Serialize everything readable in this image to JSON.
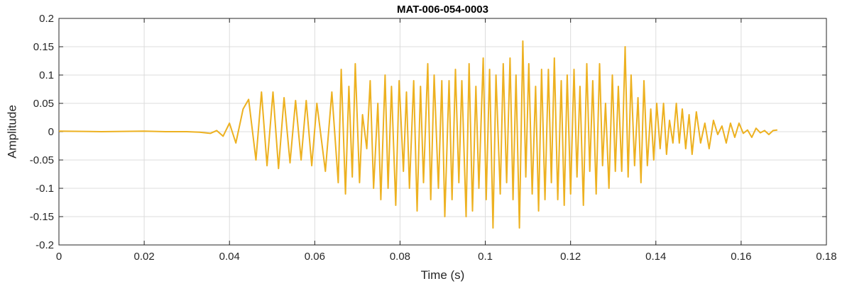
{
  "chart_data": {
    "type": "line",
    "title": "MAT-006-054-0003",
    "xlabel": "Time (s)",
    "ylabel": "Amplitude",
    "xlim": [
      0,
      0.18
    ],
    "ylim": [
      -0.2,
      0.2
    ],
    "grid": true,
    "legend": "none",
    "colors": {
      "line": "#EDB120",
      "axes": "#262626",
      "grid": "#dcdcdc"
    },
    "x_ticks": [
      {
        "value": 0,
        "label": "0"
      },
      {
        "value": 0.02,
        "label": "0.02"
      },
      {
        "value": 0.04,
        "label": "0.04"
      },
      {
        "value": 0.06,
        "label": "0.06"
      },
      {
        "value": 0.08,
        "label": "0.08"
      },
      {
        "value": 0.1,
        "label": "0.1"
      },
      {
        "value": 0.12,
        "label": "0.12"
      },
      {
        "value": 0.14,
        "label": "0.14"
      },
      {
        "value": 0.16,
        "label": "0.16"
      },
      {
        "value": 0.18,
        "label": "0.18"
      }
    ],
    "y_ticks": [
      {
        "value": 0.2,
        "label": "0.2"
      },
      {
        "value": 0.15,
        "label": "0.15"
      },
      {
        "value": 0.1,
        "label": "0.1"
      },
      {
        "value": 0.05,
        "label": "0.05"
      },
      {
        "value": 0,
        "label": "0"
      },
      {
        "value": -0.05,
        "label": "-0.05"
      },
      {
        "value": -0.1,
        "label": "-0.1"
      },
      {
        "value": -0.15,
        "label": "-0.15"
      },
      {
        "value": -0.2,
        "label": "-0.2"
      }
    ],
    "series": [
      {
        "x": [
          0,
          0.01,
          0.02,
          0.025,
          0.03,
          0.033,
          0.0355,
          0.037,
          0.0385,
          0.04,
          0.0415,
          0.0432,
          0.0445,
          0.0462,
          0.0475,
          0.0488,
          0.0502,
          0.0515,
          0.0528,
          0.0542,
          0.0555,
          0.0568,
          0.058,
          0.0593,
          0.0605,
          0.0625,
          0.064,
          0.0655,
          0.0662,
          0.0672,
          0.068,
          0.0688,
          0.0695,
          0.0705,
          0.0712,
          0.0722,
          0.073,
          0.0738,
          0.0748,
          0.0755,
          0.0765,
          0.0772,
          0.078,
          0.079,
          0.0798,
          0.0808,
          0.0815,
          0.0822,
          0.0832,
          0.084,
          0.0848,
          0.0855,
          0.0865,
          0.0872,
          0.088,
          0.089,
          0.0898,
          0.0905,
          0.0915,
          0.0922,
          0.093,
          0.0938,
          0.0945,
          0.0955,
          0.0962,
          0.097,
          0.0978,
          0.0985,
          0.0995,
          0.1002,
          0.101,
          0.1018,
          0.1025,
          0.1035,
          0.1042,
          0.105,
          0.1058,
          0.1065,
          0.1072,
          0.108,
          0.1088,
          0.1095,
          0.1102,
          0.111,
          0.1118,
          0.1125,
          0.1132,
          0.114,
          0.1148,
          0.1155,
          0.1162,
          0.117,
          0.1178,
          0.1185,
          0.1192,
          0.12,
          0.1208,
          0.1215,
          0.1222,
          0.123,
          0.1238,
          0.1245,
          0.1252,
          0.126,
          0.1268,
          0.1275,
          0.1282,
          0.129,
          0.1298,
          0.1305,
          0.1312,
          0.132,
          0.1328,
          0.1335,
          0.1342,
          0.135,
          0.1358,
          0.1365,
          0.1372,
          0.138,
          0.1388,
          0.1395,
          0.1402,
          0.141,
          0.1418,
          0.1425,
          0.1432,
          0.144,
          0.1448,
          0.1455,
          0.1462,
          0.147,
          0.1478,
          0.1485,
          0.1495,
          0.1505,
          0.1515,
          0.1525,
          0.1535,
          0.1545,
          0.1555,
          0.1565,
          0.1575,
          0.1585,
          0.1595,
          0.1605,
          0.1615,
          0.1625,
          0.1635,
          0.1645,
          0.1655,
          0.1665,
          0.1675,
          0.1685
        ],
        "y": [
          0.001,
          0.0,
          0.001,
          0.0,
          0.0,
          -0.001,
          -0.003,
          0.002,
          -0.008,
          0.015,
          -0.02,
          0.04,
          0.057,
          -0.05,
          0.07,
          -0.06,
          0.07,
          -0.065,
          0.06,
          -0.055,
          0.055,
          -0.05,
          0.055,
          -0.06,
          0.05,
          -0.07,
          0.07,
          -0.09,
          0.11,
          -0.11,
          0.08,
          -0.08,
          0.12,
          -0.09,
          0.03,
          -0.03,
          0.09,
          -0.1,
          0.05,
          -0.12,
          0.1,
          -0.1,
          0.08,
          -0.13,
          0.09,
          -0.07,
          0.07,
          -0.1,
          0.09,
          -0.14,
          0.08,
          -0.09,
          0.12,
          -0.12,
          0.1,
          -0.1,
          0.09,
          -0.15,
          0.09,
          -0.12,
          0.11,
          -0.09,
          0.09,
          -0.15,
          0.12,
          -0.14,
          0.08,
          -0.1,
          0.13,
          -0.12,
          0.11,
          -0.17,
          0.1,
          -0.11,
          0.12,
          -0.09,
          0.13,
          -0.12,
          0.1,
          -0.17,
          0.16,
          -0.08,
          0.12,
          -0.11,
          0.08,
          -0.14,
          0.11,
          -0.12,
          0.11,
          -0.09,
          0.13,
          -0.12,
          0.09,
          -0.13,
          0.1,
          -0.11,
          0.11,
          -0.08,
          0.08,
          -0.13,
          0.12,
          -0.07,
          0.09,
          -0.11,
          0.12,
          -0.06,
          0.05,
          -0.1,
          0.1,
          -0.07,
          0.08,
          -0.07,
          0.15,
          -0.08,
          0.1,
          -0.06,
          0.06,
          -0.09,
          0.09,
          -0.06,
          0.04,
          -0.05,
          0.05,
          -0.03,
          0.05,
          -0.04,
          0.02,
          -0.02,
          0.05,
          -0.02,
          0.04,
          -0.03,
          0.03,
          -0.04,
          0.035,
          -0.02,
          0.015,
          -0.03,
          0.02,
          -0.005,
          0.01,
          -0.02,
          0.015,
          -0.01,
          0.015,
          -0.003,
          0.003,
          -0.01,
          0.006,
          -0.002,
          0.002,
          -0.005,
          0.002,
          0.003
        ]
      }
    ]
  }
}
